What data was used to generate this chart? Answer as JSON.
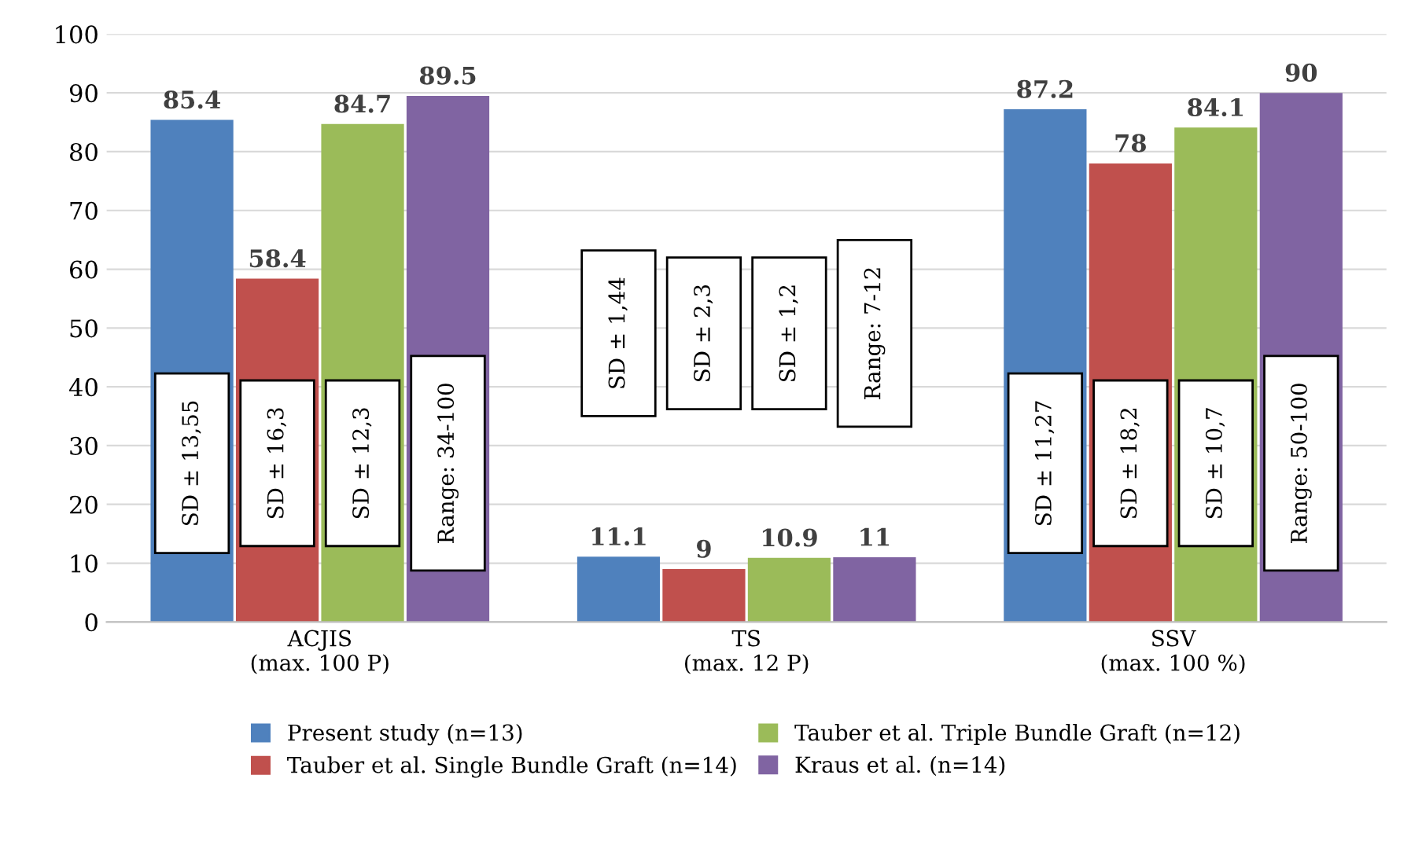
{
  "chart_data": {
    "type": "bar",
    "categories": [
      "ACJIS\n(max. 100 P)",
      "TS\n(max. 12 P)",
      "SSV\n(max. 100 %)"
    ],
    "series": [
      {
        "name": "Present study (n=13)",
        "color": "#4f81bd",
        "values": [
          85.4,
          11.1,
          87.2
        ]
      },
      {
        "name": "Tauber et al. Single Bundle Graft (n=14)",
        "color": "#c0504d",
        "values": [
          58.4,
          9,
          78
        ]
      },
      {
        "name": "Tauber et al. Triple Bundle Graft (n=12)",
        "color": "#9bbb59",
        "values": [
          84.7,
          10.9,
          84.1
        ]
      },
      {
        "name": "Kraus et al. (n=14)",
        "color": "#8064a2",
        "values": [
          89.5,
          11,
          90
        ]
      }
    ],
    "ylim": [
      0,
      100
    ],
    "yticks": [
      0,
      10,
      20,
      30,
      40,
      50,
      60,
      70,
      80,
      90,
      100
    ],
    "grid": "y",
    "legend": "bottom",
    "data_labels": true,
    "annotations": [
      "SD ± 13,55",
      "SD ± 16,3",
      "SD ± 12,3",
      "Range: 34-100",
      "SD ± 1,44",
      "SD ± 2,3",
      "SD ± 1,2",
      "Range: 7-12",
      "SD ± 11,27",
      "SD ± 18,2",
      "SD ± 10,7",
      "Range: 50-100"
    ]
  }
}
